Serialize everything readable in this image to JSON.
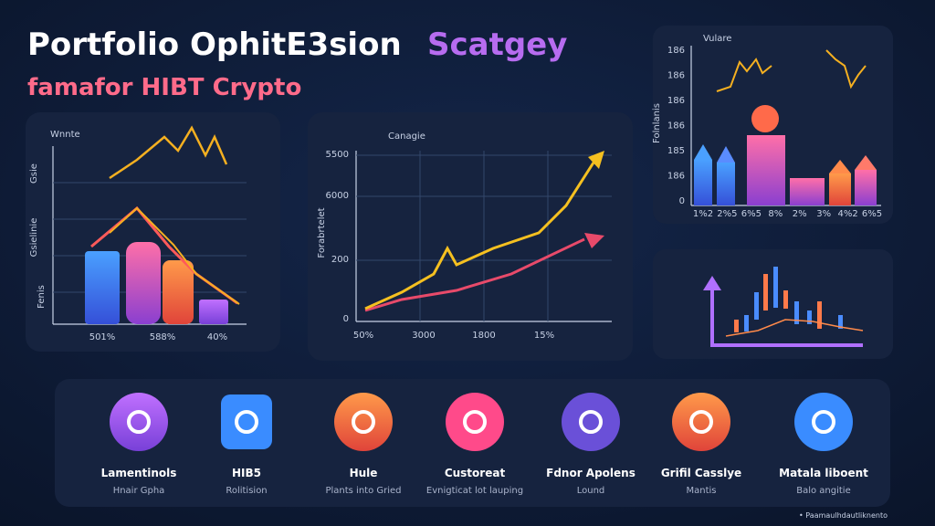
{
  "header": {
    "title_main": "Portfolio OphitE3sion",
    "title_accent": "Scatgey",
    "subtitle": "famafor HIBT Crypto"
  },
  "panels": [
    {
      "label": "Wnnte",
      "y_labels": [
        "Gsie",
        "Gsielinie",
        "Fenis"
      ],
      "x_labels": [
        "501%",
        "588%",
        "40%"
      ]
    },
    {
      "label": "Canagie",
      "y_axis_title": "Forabrtelet",
      "y_labels": [
        "5500",
        "6000",
        "200",
        "0"
      ],
      "x_labels": [
        "50%",
        "3000",
        "1800",
        "15%"
      ]
    },
    {
      "label": "Vulare",
      "y_axis_title": "Folnlanis",
      "y_labels": [
        "186",
        "186",
        "186",
        "186",
        "185",
        "186",
        "0"
      ],
      "x_labels": [
        "1%2",
        "2%5",
        "6%5",
        "8%",
        "2%",
        "3%",
        "4%2",
        "6%5"
      ]
    }
  ],
  "features": [
    {
      "title": "Lamentinols",
      "subtitle": "Hnair Gpha"
    },
    {
      "title": "HIB5",
      "subtitle": "Rolitision"
    },
    {
      "title": "Hule",
      "subtitle": "Plants into Gried"
    },
    {
      "title": "Custoreat",
      "subtitle": "Evnigticat lot lauping"
    },
    {
      "title": "Fdnor Apolens",
      "subtitle": "Lound"
    },
    {
      "title": "Grifil Casslye",
      "subtitle": "Mantis"
    },
    {
      "title": "Matala liboent",
      "subtitle": "Balo angitie"
    }
  ],
  "footer": "• Paamaulhdautliknento"
}
